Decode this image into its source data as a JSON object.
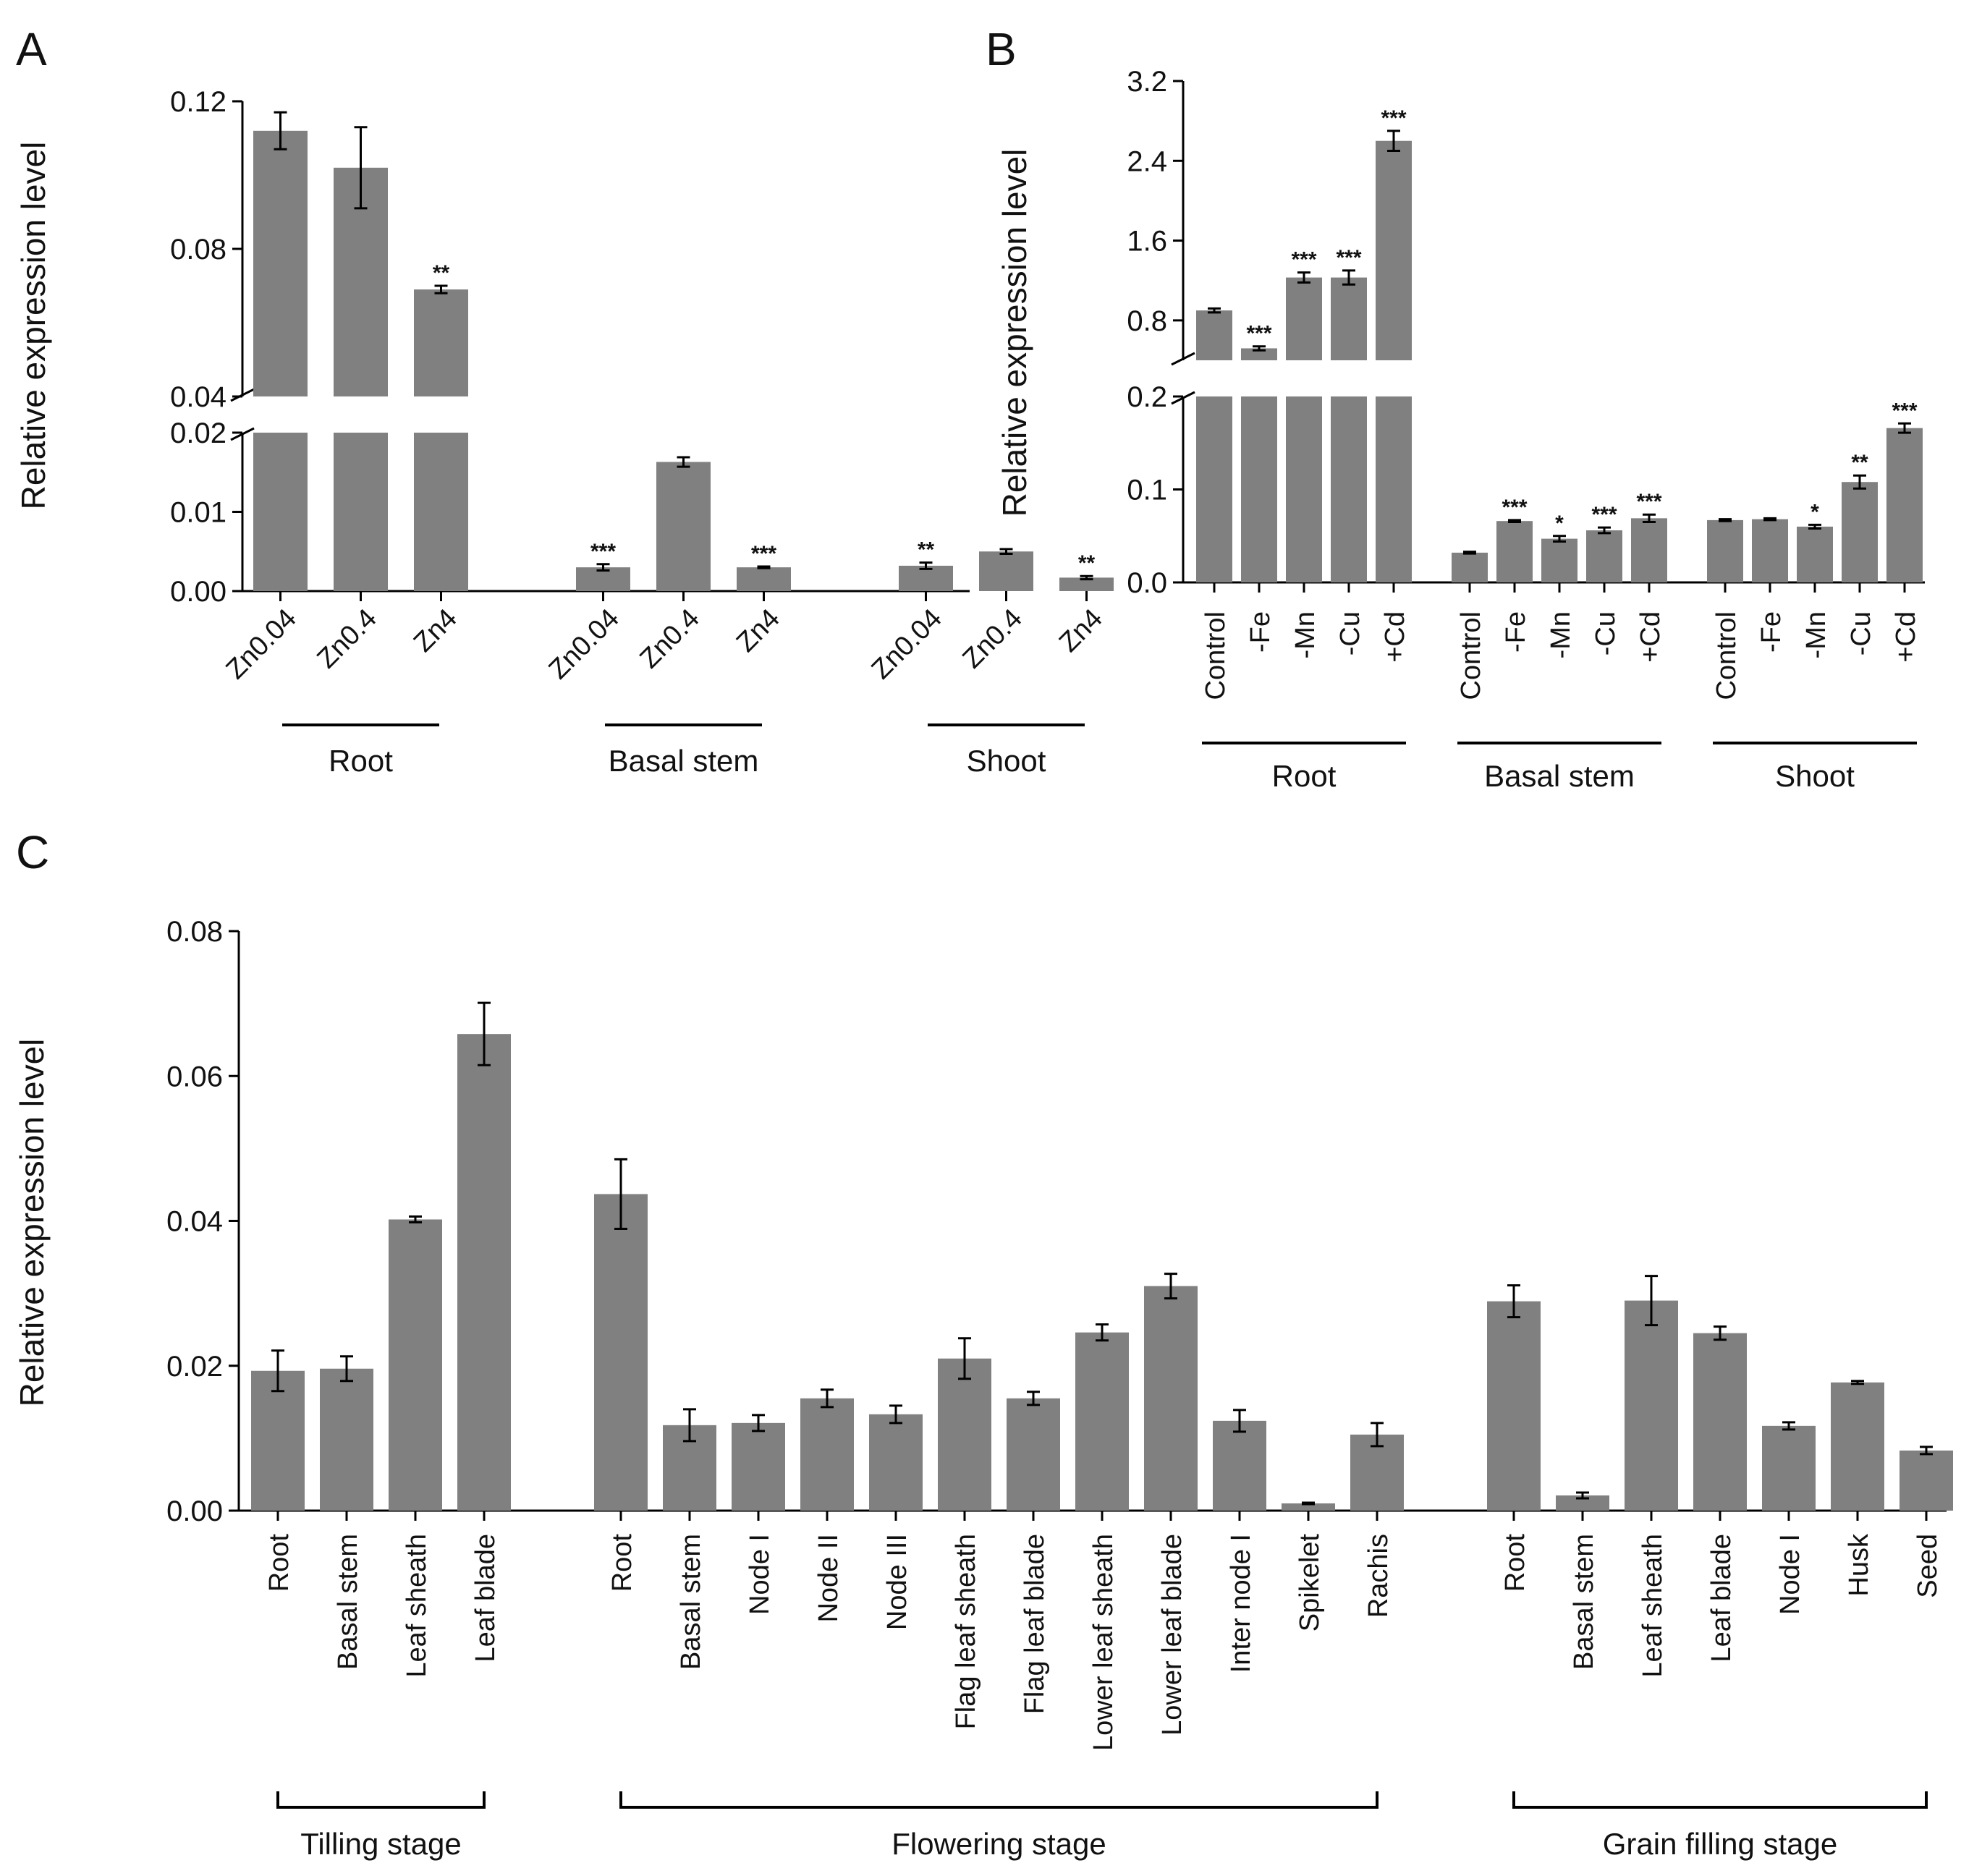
{
  "colors": {
    "bar": "#808080",
    "axis": "#000000"
  },
  "chart_data": [
    {
      "panel": "A",
      "type": "bar",
      "ylabel": "Relative expression level",
      "broken_axis": true,
      "lower_ylim": [
        0,
        0.02
      ],
      "upper_ylim": [
        0.04,
        0.12
      ],
      "lower_ticks": [
        "0.00",
        "0.01",
        "0.02"
      ],
      "upper_ticks": [
        "0.04",
        "0.08",
        "0.12"
      ],
      "groups": [
        {
          "label": "Root",
          "bars": [
            {
              "label": "Zn0.04",
              "value": 0.112,
              "err": 0.005,
              "sig": ""
            },
            {
              "label": "Zn0.4",
              "value": 0.102,
              "err": 0.011,
              "sig": ""
            },
            {
              "label": "Zn4",
              "value": 0.069,
              "err": 0.001,
              "sig": "**"
            }
          ]
        },
        {
          "label": "Basal stem",
          "bars": [
            {
              "label": "Zn0.04",
              "value": 0.003,
              "err": 0.0004,
              "sig": "***"
            },
            {
              "label": "Zn0.4",
              "value": 0.0163,
              "err": 0.0006,
              "sig": ""
            },
            {
              "label": "Zn4",
              "value": 0.003,
              "err": 0.0001,
              "sig": "***"
            }
          ]
        },
        {
          "label": "Shoot",
          "bars": [
            {
              "label": "Zn0.04",
              "value": 0.0032,
              "err": 0.0004,
              "sig": "**"
            },
            {
              "label": "Zn0.4",
              "value": 0.005,
              "err": 0.0003,
              "sig": ""
            },
            {
              "label": "Zn4",
              "value": 0.0017,
              "err": 0.0002,
              "sig": "**"
            }
          ]
        }
      ]
    },
    {
      "panel": "B",
      "type": "bar",
      "ylabel": "Relative expression level",
      "broken_axis": true,
      "lower_ylim": [
        0,
        0.2
      ],
      "upper_ylim": [
        0.4,
        3.2
      ],
      "lower_ticks": [
        "0.0",
        "0.1",
        "0.2"
      ],
      "upper_ticks": [
        "0.8",
        "1.6",
        "2.4",
        "3.2"
      ],
      "groups": [
        {
          "label": "Root",
          "bars": [
            {
              "label": "Control",
              "value": 0.9,
              "err": 0.02,
              "sig": ""
            },
            {
              "label": "-Fe",
              "value": 0.52,
              "err": 0.02,
              "sig": "***"
            },
            {
              "label": "-Mn",
              "value": 1.23,
              "err": 0.05,
              "sig": "***"
            },
            {
              "label": "-Cu",
              "value": 1.23,
              "err": 0.07,
              "sig": "***"
            },
            {
              "label": "+Cd",
              "value": 2.6,
              "err": 0.1,
              "sig": "***"
            }
          ]
        },
        {
          "label": "Basal stem",
          "bars": [
            {
              "label": "Control",
              "value": 0.032,
              "err": 0.001,
              "sig": ""
            },
            {
              "label": "-Fe",
              "value": 0.066,
              "err": 0.001,
              "sig": "***"
            },
            {
              "label": "-Mn",
              "value": 0.047,
              "err": 0.003,
              "sig": "*"
            },
            {
              "label": "-Cu",
              "value": 0.056,
              "err": 0.003,
              "sig": "***"
            },
            {
              "label": "+Cd",
              "value": 0.069,
              "err": 0.004,
              "sig": "***"
            }
          ]
        },
        {
          "label": "Shoot",
          "bars": [
            {
              "label": "Control",
              "value": 0.067,
              "err": 0.001,
              "sig": ""
            },
            {
              "label": "-Fe",
              "value": 0.068,
              "err": 0.001,
              "sig": ""
            },
            {
              "label": "-Mn",
              "value": 0.06,
              "err": 0.002,
              "sig": "*"
            },
            {
              "label": "-Cu",
              "value": 0.108,
              "err": 0.007,
              "sig": "**"
            },
            {
              "label": "+Cd",
              "value": 0.166,
              "err": 0.005,
              "sig": "***"
            }
          ]
        }
      ]
    },
    {
      "panel": "C",
      "type": "bar",
      "ylabel": "Relative expression level",
      "broken_axis": false,
      "ylim": [
        0,
        0.08
      ],
      "ticks": [
        "0.00",
        "0.02",
        "0.04",
        "0.06",
        "0.08"
      ],
      "groups": [
        {
          "label": "Tilling stage",
          "bars": [
            {
              "label": "Root",
              "value": 0.0193,
              "err": 0.0028
            },
            {
              "label": "Basal stem",
              "value": 0.0196,
              "err": 0.0017
            },
            {
              "label": "Leaf sheath",
              "value": 0.0402,
              "err": 0.0004
            },
            {
              "label": "Leaf blade",
              "value": 0.0658,
              "err": 0.0043
            }
          ]
        },
        {
          "label": "Flowering stage",
          "bars": [
            {
              "label": "Root",
              "value": 0.0437,
              "err": 0.0048
            },
            {
              "label": "Basal stem",
              "value": 0.0118,
              "err": 0.0022
            },
            {
              "label": "Node I",
              "value": 0.0121,
              "err": 0.0011
            },
            {
              "label": "Node II",
              "value": 0.0155,
              "err": 0.0012
            },
            {
              "label": "Node III",
              "value": 0.0133,
              "err": 0.0012
            },
            {
              "label": "Flag leaf sheath",
              "value": 0.021,
              "err": 0.0028
            },
            {
              "label": "Flag leaf blade",
              "value": 0.0155,
              "err": 0.0009
            },
            {
              "label": "Lower leaf sheath",
              "value": 0.0246,
              "err": 0.0011
            },
            {
              "label": "Lower leaf blade",
              "value": 0.031,
              "err": 0.0017
            },
            {
              "label": "Inter node I",
              "value": 0.0124,
              "err": 0.0015
            },
            {
              "label": "Spikelet",
              "value": 0.001,
              "err": 0.0001
            },
            {
              "label": "Rachis",
              "value": 0.0105,
              "err": 0.0016
            }
          ]
        },
        {
          "label": "Grain filling stage",
          "bars": [
            {
              "label": "Root",
              "value": 0.0289,
              "err": 0.0022
            },
            {
              "label": "Basal stem",
              "value": 0.0021,
              "err": 0.0004
            },
            {
              "label": "Leaf sheath",
              "value": 0.029,
              "err": 0.0034
            },
            {
              "label": "Leaf blade",
              "value": 0.0245,
              "err": 0.0009
            },
            {
              "label": "Node I",
              "value": 0.0117,
              "err": 0.0005
            },
            {
              "label": "Husk",
              "value": 0.0177,
              "err": 0.0002
            },
            {
              "label": "Seed",
              "value": 0.0083,
              "err": 0.0005
            }
          ]
        }
      ]
    }
  ]
}
